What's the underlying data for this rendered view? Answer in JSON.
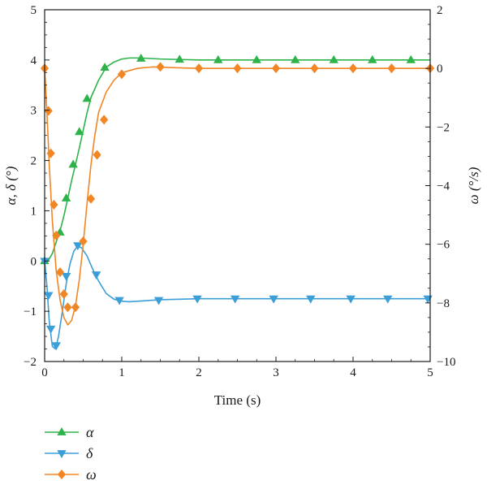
{
  "chart_data": {
    "type": "line",
    "xlabel": "Time (s)",
    "ylabel_left": "α, δ (°)",
    "ylabel_right": "ω (°/s)",
    "xlim": [
      0,
      5
    ],
    "ylim_left": [
      -2,
      5
    ],
    "ylim_right": [
      -10,
      2
    ],
    "x_ticks": [
      "0",
      "1",
      "2",
      "3",
      "4",
      "5"
    ],
    "y_left_ticks": [
      "5",
      "4",
      "3",
      "2",
      "1",
      "0",
      "−1",
      "−2"
    ],
    "y_right_ticks": [
      "2",
      "0",
      "−2",
      "−4",
      "−6",
      "−8",
      "−10"
    ],
    "grid": false,
    "legend_position": "bottom-left",
    "series": [
      {
        "name": "α",
        "axis": "left",
        "color": "#2db34a",
        "marker": "triangle-up",
        "curve": [
          [
            0,
            0
          ],
          [
            0.05,
            0.02
          ],
          [
            0.1,
            0.15
          ],
          [
            0.15,
            0.38
          ],
          [
            0.2,
            0.6
          ],
          [
            0.25,
            0.9
          ],
          [
            0.3,
            1.25
          ],
          [
            0.35,
            1.6
          ],
          [
            0.4,
            1.92
          ],
          [
            0.45,
            2.25
          ],
          [
            0.5,
            2.6
          ],
          [
            0.55,
            2.95
          ],
          [
            0.6,
            3.25
          ],
          [
            0.7,
            3.6
          ],
          [
            0.8,
            3.86
          ],
          [
            0.9,
            3.96
          ],
          [
            1.0,
            4.02
          ],
          [
            1.1,
            4.04
          ],
          [
            1.25,
            4.04
          ],
          [
            1.5,
            4.02
          ],
          [
            1.75,
            4.01
          ],
          [
            2,
            4.0
          ],
          [
            5,
            4.0
          ]
        ],
        "markers": [
          [
            0,
            0
          ],
          [
            0.2,
            0.57
          ],
          [
            0.28,
            1.25
          ],
          [
            0.37,
            1.92
          ],
          [
            0.45,
            2.57
          ],
          [
            0.55,
            3.23
          ],
          [
            0.78,
            3.85
          ],
          [
            1.25,
            4.03
          ],
          [
            1.75,
            4.01
          ],
          [
            2.25,
            4.0
          ],
          [
            2.75,
            4.0
          ],
          [
            3.25,
            4.0
          ],
          [
            3.75,
            4.0
          ],
          [
            4.25,
            4.0
          ],
          [
            4.75,
            4.0
          ]
        ]
      },
      {
        "name": "δ",
        "axis": "left",
        "color": "#3b9ed6",
        "marker": "triangle-down",
        "curve": [
          [
            0,
            0
          ],
          [
            0.03,
            -0.5
          ],
          [
            0.06,
            -1.2
          ],
          [
            0.1,
            -1.7
          ],
          [
            0.14,
            -1.75
          ],
          [
            0.18,
            -1.5
          ],
          [
            0.23,
            -1.0
          ],
          [
            0.28,
            -0.45
          ],
          [
            0.33,
            -0.05
          ],
          [
            0.38,
            0.2
          ],
          [
            0.43,
            0.3
          ],
          [
            0.48,
            0.26
          ],
          [
            0.55,
            0.1
          ],
          [
            0.62,
            -0.15
          ],
          [
            0.7,
            -0.4
          ],
          [
            0.8,
            -0.65
          ],
          [
            0.9,
            -0.76
          ],
          [
            1.0,
            -0.8
          ],
          [
            1.1,
            -0.81
          ],
          [
            1.3,
            -0.79
          ],
          [
            1.5,
            -0.77
          ],
          [
            1.75,
            -0.76
          ],
          [
            2,
            -0.75
          ],
          [
            5,
            -0.75
          ]
        ],
        "markers": [
          [
            0,
            0
          ],
          [
            0.05,
            -0.68
          ],
          [
            0.08,
            -1.35
          ],
          [
            0.15,
            -1.68
          ],
          [
            0.28,
            -0.3
          ],
          [
            0.43,
            0.31
          ],
          [
            0.67,
            -0.27
          ],
          [
            0.97,
            -0.78
          ],
          [
            1.48,
            -0.78
          ],
          [
            1.98,
            -0.75
          ],
          [
            2.47,
            -0.75
          ],
          [
            2.97,
            -0.75
          ],
          [
            3.45,
            -0.75
          ],
          [
            3.97,
            -0.75
          ],
          [
            4.45,
            -0.75
          ],
          [
            4.97,
            -0.75
          ]
        ]
      },
      {
        "name": "ω",
        "axis": "right",
        "color": "#f28524",
        "marker": "diamond",
        "curve": [
          [
            0,
            0
          ],
          [
            0.03,
            -1.5
          ],
          [
            0.06,
            -3.3
          ],
          [
            0.1,
            -5.2
          ],
          [
            0.15,
            -6.9
          ],
          [
            0.2,
            -7.9
          ],
          [
            0.25,
            -8.5
          ],
          [
            0.3,
            -8.75
          ],
          [
            0.35,
            -8.6
          ],
          [
            0.4,
            -8.1
          ],
          [
            0.45,
            -7.2
          ],
          [
            0.5,
            -6.0
          ],
          [
            0.55,
            -4.6
          ],
          [
            0.6,
            -3.3
          ],
          [
            0.65,
            -2.3
          ],
          [
            0.7,
            -1.5
          ],
          [
            0.8,
            -0.8
          ],
          [
            0.9,
            -0.4
          ],
          [
            1.0,
            -0.15
          ],
          [
            1.2,
            0
          ],
          [
            1.4,
            0.05
          ],
          [
            1.6,
            0.03
          ],
          [
            2,
            0
          ],
          [
            5,
            0
          ]
        ],
        "markers": [
          [
            0,
            0
          ],
          [
            0.05,
            -1.45
          ],
          [
            0.08,
            -2.9
          ],
          [
            0.12,
            -4.65
          ],
          [
            0.15,
            -5.7
          ],
          [
            0.2,
            -6.95
          ],
          [
            0.25,
            -7.7
          ],
          [
            0.3,
            -8.15
          ],
          [
            0.4,
            -8.15
          ],
          [
            0.5,
            -5.9
          ],
          [
            0.6,
            -4.45
          ],
          [
            0.68,
            -2.95
          ],
          [
            0.77,
            -1.75
          ],
          [
            1.0,
            -0.2
          ],
          [
            1.5,
            0.05
          ],
          [
            2.0,
            0
          ],
          [
            2.5,
            0
          ],
          [
            3.0,
            0
          ],
          [
            3.5,
            0
          ],
          [
            4.0,
            0
          ],
          [
            4.5,
            0
          ],
          [
            5.0,
            0
          ]
        ]
      }
    ]
  }
}
